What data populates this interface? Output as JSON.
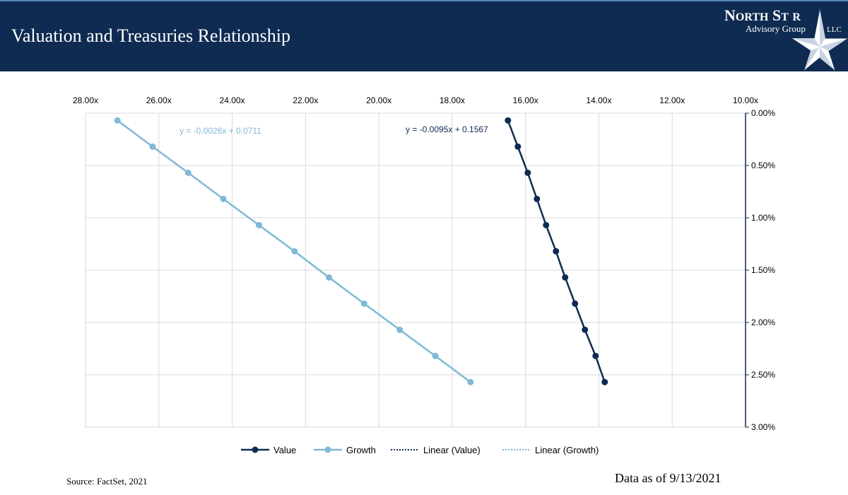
{
  "header": {
    "title": "Valuation and Treasuries Relationship",
    "logo_text": "North Star Advisory Group LLC"
  },
  "footer": {
    "source": "Source: FactSet, 2021",
    "as_of": "Data as of 9/13/2021"
  },
  "colors": {
    "header": "#0f2b52",
    "value": "#0f2b52",
    "growth": "#7fb9d6",
    "grid": "#d9d9d9"
  },
  "chart_data": {
    "type": "scatter",
    "title": "",
    "xlabel": "",
    "ylabel": "",
    "x_axis": {
      "position": "top",
      "reversed": true,
      "range": [
        10,
        28
      ],
      "ticks": [
        "28.00x",
        "26.00x",
        "24.00x",
        "22.00x",
        "20.00x",
        "18.00x",
        "16.00x",
        "14.00x",
        "12.00x",
        "10.00x"
      ],
      "tick_values": [
        28,
        26,
        24,
        22,
        20,
        18,
        16,
        14,
        12,
        10
      ]
    },
    "y_axis": {
      "position": "right",
      "reversed": true,
      "range": [
        0,
        3
      ],
      "ticks": [
        "0.00%",
        "0.50%",
        "1.00%",
        "1.50%",
        "2.00%",
        "2.50%",
        "3.00%"
      ],
      "tick_values": [
        0,
        0.5,
        1,
        1.5,
        2,
        2.5,
        3
      ]
    },
    "grid": true,
    "legend_position": "bottom",
    "series": [
      {
        "name": "Value",
        "color": "#0f2b52",
        "marker": "circle",
        "x": [
          16.48,
          16.21,
          15.94,
          15.69,
          15.44,
          15.17,
          14.92,
          14.65,
          14.38,
          14.09,
          13.84
        ],
        "y": [
          0.07,
          0.32,
          0.57,
          0.82,
          1.07,
          1.32,
          1.57,
          1.82,
          2.07,
          2.32,
          2.57
        ]
      },
      {
        "name": "Growth",
        "color": "#7fb9d6",
        "marker": "circle",
        "x": [
          27.13,
          26.17,
          25.2,
          24.24,
          23.27,
          22.3,
          21.36,
          20.4,
          19.43,
          18.46,
          17.5
        ],
        "y": [
          0.07,
          0.32,
          0.57,
          0.82,
          1.07,
          1.32,
          1.57,
          1.82,
          2.07,
          2.32,
          2.57
        ]
      }
    ],
    "trendlines": [
      {
        "name": "Linear (Value)",
        "equation": "y = -0.0095x + 0.1567",
        "color": "#0f2b52",
        "style": "dotted"
      },
      {
        "name": "Linear (Growth)",
        "equation": "y = -0.0026x + 0.0711",
        "color": "#7fb9d6",
        "style": "dotted"
      }
    ]
  }
}
